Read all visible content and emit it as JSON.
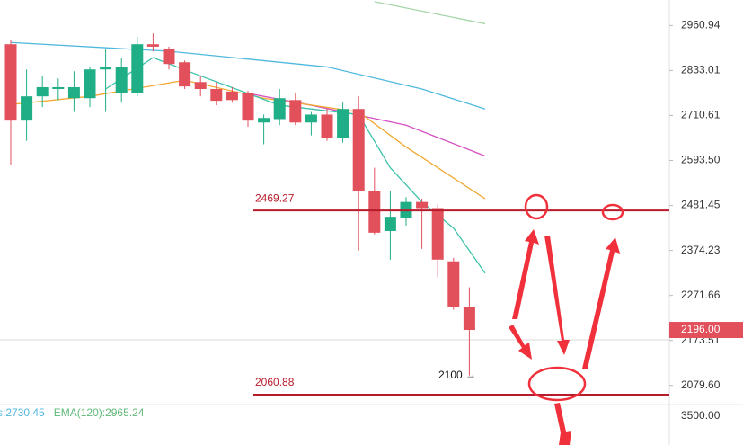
{
  "chart_data": {
    "type": "candlestick",
    "log_scale": true,
    "ylim": [
      2050,
      3036
    ],
    "yticks": [
      2960.94,
      2833.01,
      2710.61,
      {
        "value": 2593.5,
        "label": "2593.50"
      },
      2481.45,
      2374.23,
      2271.66,
      2173.51,
      {
        "value": 2079.6,
        "label": "2079.60"
      }
    ],
    "up_color": "#1fae86",
    "down_color": "#e2505c",
    "open": [
      2907,
      2697,
      2762,
      2782,
      2757,
      2757,
      2836,
      2770,
      2770,
      2907,
      2894,
      2856,
      2801,
      2782,
      2775,
      2770,
      2692,
      2701,
      2752,
      2692,
      2713,
      2651,
      2728,
      2518,
      2420,
      2452,
      2490,
      2475,
      2349,
      2246
    ],
    "high": [
      2920,
      2836,
      2818,
      2811,
      2831,
      2843,
      2894,
      2869,
      2928,
      2938,
      2900,
      2861,
      2818,
      2801,
      2787,
      2777,
      2713,
      2782,
      2770,
      2720,
      2728,
      2745,
      2762,
      2575,
      2518,
      2502,
      2498,
      2484,
      2357,
      2290
    ],
    "low": [
      2582,
      2644,
      2733,
      2752,
      2720,
      2733,
      2720,
      2745,
      2762,
      2887,
      2836,
      2782,
      2762,
      2738,
      2745,
      2681,
      2635,
      2685,
      2685,
      2658,
      2644,
      2639,
      2374,
      2412,
      2353,
      2433,
      2378,
      2312,
      2240,
      2100
    ],
    "close": [
      2697,
      2762,
      2787,
      2787,
      2787,
      2836,
      2843,
      2843,
      2907,
      2900,
      2851,
      2789,
      2782,
      2750,
      2752,
      2697,
      2704,
      2757,
      2692,
      2713,
      2651,
      2728,
      2518,
      2416,
      2454,
      2490,
      2475,
      2353,
      2246,
      2196
    ],
    "lines": [
      {
        "color": "#a5d6a7",
        "x": [
          23,
          30
        ],
        "values": [
          3031,
          2966
        ]
      },
      {
        "color": "#4fb8dd",
        "x": [
          0,
          10,
          20,
          26,
          30
        ],
        "values": [
          2912,
          2887,
          2843,
          2782,
          2728
        ]
      },
      {
        "color": "#d54fc4",
        "x": [
          15,
          19,
          25,
          30
        ],
        "values": [
          2770,
          2738,
          2685,
          2605
        ]
      },
      {
        "color": "#f0a830",
        "x": [
          0,
          5,
          11,
          16,
          22,
          25,
          30
        ],
        "values": [
          2740,
          2762,
          2806,
          2757,
          2720,
          2628,
          2498
        ]
      },
      {
        "color": "#3cc3a8",
        "x": [
          6,
          9,
          12,
          17,
          22,
          24,
          26,
          28,
          30
        ],
        "values": [
          2782,
          2869,
          2818,
          2738,
          2713,
          2575,
          2490,
          2427,
          2322
        ]
      }
    ],
    "levels": [
      {
        "value": 2469.27,
        "color": "#b71c2c"
      },
      {
        "value": 2060.88,
        "color": "#b71c2c"
      }
    ],
    "annotation": {
      "value": 2100,
      "label": "2100 →"
    },
    "last_price": {
      "value": 2196,
      "label": "2196.00"
    },
    "legend": [
      {
        "label": "s:2730.45",
        "color": "#4fb8dd"
      },
      {
        "label": "EMA(120):2965.24",
        "color": "#5fb878"
      }
    ],
    "lower_pane_tick": {
      "value": 3500,
      "label": "3500.00"
    }
  }
}
